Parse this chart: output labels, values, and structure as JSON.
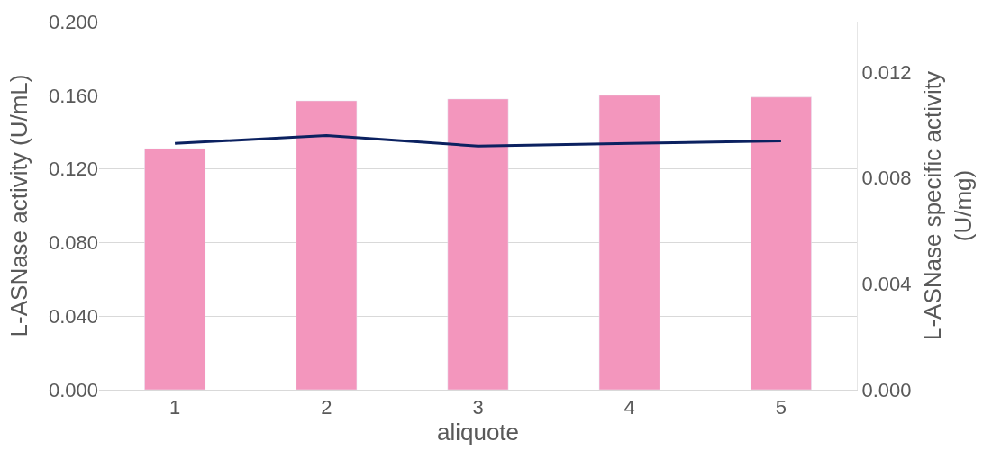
{
  "chart_data": {
    "type": "bar",
    "xlabel": "aliquote",
    "ylabel": "L-ASNase activity (U/mL)",
    "y2label": "L-ASNase specific activity (U/mg)",
    "categories": [
      "1",
      "2",
      "3",
      "4",
      "5"
    ],
    "series": [
      {
        "color": "#f396bd",
        "values": [
          0.131,
          0.157,
          0.158,
          0.16,
          0.159
        ]
      },
      {
        "type": "line",
        "axis": "y2",
        "color": "#0b2160",
        "values": [
          0.0093,
          0.0096,
          0.0092,
          0.0093,
          0.0094
        ]
      }
    ],
    "ylim": [
      0,
      0.2
    ],
    "yticks": [
      {
        "value": 0,
        "label": "0.000"
      },
      {
        "value": 0.04,
        "label": "0.040"
      },
      {
        "value": 0.08,
        "label": "0.080"
      },
      {
        "value": 0.12,
        "label": "0.120"
      },
      {
        "value": 0.16,
        "label": "0.160"
      },
      {
        "value": 0.2,
        "label": "0.200"
      }
    ],
    "y2lim": [
      0,
      0.0139
    ],
    "y2ticks": [
      {
        "value": 0,
        "label": "0.000"
      },
      {
        "value": 0.004,
        "label": "0.004"
      },
      {
        "value": 0.008,
        "label": "0.008"
      },
      {
        "value": 0.012,
        "label": "0.012"
      }
    ],
    "grid": "y",
    "marker": "none",
    "line_style": "solid"
  }
}
